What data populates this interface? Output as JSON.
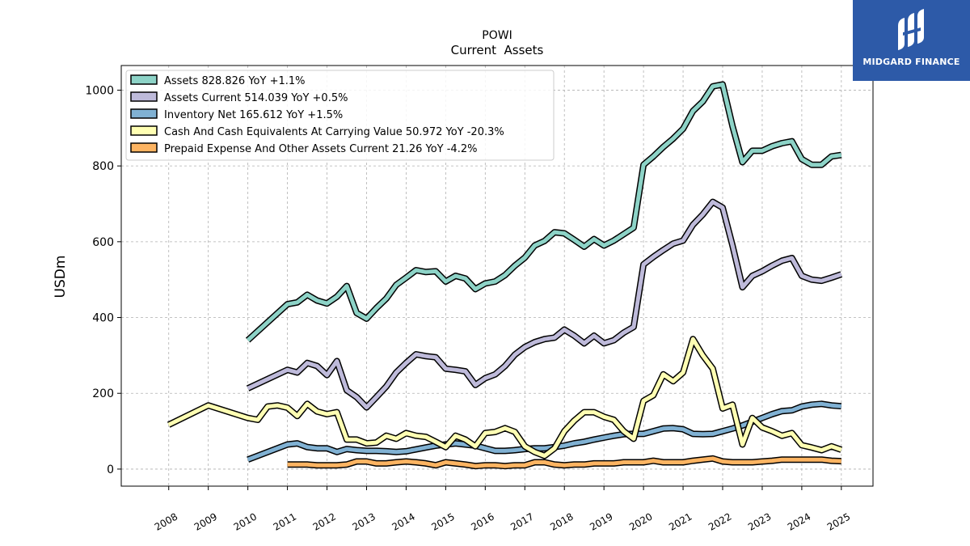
{
  "brand": {
    "name": "MIDGARD FINANCE",
    "bg_color": "#2d5aa8",
    "logo_icon": "midgard-logo-icon"
  },
  "chart_data": {
    "type": "line",
    "title": "POWI",
    "subtitle": "Current  Assets",
    "ylabel": "USDm",
    "xlabel": "",
    "ylim": [
      -45,
      1065
    ],
    "xlim": [
      2006.8,
      2025.8
    ],
    "yticks": [
      0,
      200,
      400,
      600,
      800,
      1000
    ],
    "xticks": [
      2008,
      2009,
      2010,
      2011,
      2012,
      2013,
      2014,
      2015,
      2016,
      2017,
      2018,
      2019,
      2020,
      2021,
      2022,
      2023,
      2024,
      2025
    ],
    "xtick_labels": [
      "2008",
      "2009",
      "2010",
      "2011",
      "2012",
      "2013",
      "2014",
      "2015",
      "2016",
      "2017",
      "2018",
      "2019",
      "2020",
      "2021",
      "2022",
      "2023",
      "2024",
      "2025"
    ],
    "grid": true,
    "legend_position": "top-left",
    "series": [
      {
        "name": "Assets  828.826 YoY +1.1%",
        "color": "#8dd3c7",
        "points": [
          [
            2010.0,
            340
          ],
          [
            2011.0,
            435
          ],
          [
            2011.25,
            440
          ],
          [
            2011.5,
            460
          ],
          [
            2011.75,
            445
          ],
          [
            2012.0,
            437
          ],
          [
            2012.25,
            455
          ],
          [
            2012.5,
            483
          ],
          [
            2012.75,
            412
          ],
          [
            2013.0,
            397
          ],
          [
            2013.25,
            425
          ],
          [
            2013.5,
            450
          ],
          [
            2013.75,
            486
          ],
          [
            2014.0,
            505
          ],
          [
            2014.25,
            525
          ],
          [
            2014.5,
            520
          ],
          [
            2014.75,
            522
          ],
          [
            2015.0,
            495
          ],
          [
            2015.25,
            510
          ],
          [
            2015.5,
            503
          ],
          [
            2015.75,
            475
          ],
          [
            2016.0,
            490
          ],
          [
            2016.25,
            495
          ],
          [
            2016.5,
            512
          ],
          [
            2016.75,
            537
          ],
          [
            2017.0,
            558
          ],
          [
            2017.25,
            590
          ],
          [
            2017.5,
            602
          ],
          [
            2017.75,
            625
          ],
          [
            2018.0,
            622
          ],
          [
            2018.25,
            605
          ],
          [
            2018.5,
            587
          ],
          [
            2018.75,
            607
          ],
          [
            2019.0,
            590
          ],
          [
            2019.25,
            603
          ],
          [
            2019.5,
            620
          ],
          [
            2019.75,
            637
          ],
          [
            2020.0,
            803
          ],
          [
            2020.25,
            825
          ],
          [
            2020.5,
            850
          ],
          [
            2020.75,
            872
          ],
          [
            2021.0,
            898
          ],
          [
            2021.25,
            945
          ],
          [
            2021.5,
            970
          ],
          [
            2021.75,
            1010
          ],
          [
            2022.0,
            1015
          ],
          [
            2022.25,
            905
          ],
          [
            2022.5,
            810
          ],
          [
            2022.75,
            840
          ],
          [
            2023.0,
            840
          ],
          [
            2023.25,
            852
          ],
          [
            2023.5,
            860
          ],
          [
            2023.75,
            865
          ],
          [
            2024.0,
            818
          ],
          [
            2024.25,
            803
          ],
          [
            2024.5,
            803
          ],
          [
            2024.75,
            825
          ],
          [
            2025.0,
            829
          ]
        ]
      },
      {
        "name": "Assets Current  514.039 YoY +0.5%",
        "color": "#bebada",
        "points": [
          [
            2010.0,
            213
          ],
          [
            2011.0,
            262
          ],
          [
            2011.25,
            255
          ],
          [
            2011.5,
            280
          ],
          [
            2011.75,
            272
          ],
          [
            2012.0,
            248
          ],
          [
            2012.25,
            285
          ],
          [
            2012.5,
            208
          ],
          [
            2012.75,
            190
          ],
          [
            2013.0,
            163
          ],
          [
            2013.25,
            190
          ],
          [
            2013.5,
            218
          ],
          [
            2013.75,
            255
          ],
          [
            2014.0,
            280
          ],
          [
            2014.25,
            303
          ],
          [
            2014.5,
            298
          ],
          [
            2014.75,
            295
          ],
          [
            2015.0,
            265
          ],
          [
            2015.25,
            262
          ],
          [
            2015.5,
            258
          ],
          [
            2015.75,
            222
          ],
          [
            2016.0,
            240
          ],
          [
            2016.25,
            250
          ],
          [
            2016.5,
            272
          ],
          [
            2016.75,
            302
          ],
          [
            2017.0,
            322
          ],
          [
            2017.25,
            335
          ],
          [
            2017.5,
            343
          ],
          [
            2017.75,
            347
          ],
          [
            2018.0,
            368
          ],
          [
            2018.25,
            352
          ],
          [
            2018.5,
            332
          ],
          [
            2018.75,
            352
          ],
          [
            2019.0,
            332
          ],
          [
            2019.25,
            340
          ],
          [
            2019.5,
            360
          ],
          [
            2019.75,
            375
          ],
          [
            2020.0,
            540
          ],
          [
            2020.25,
            560
          ],
          [
            2020.5,
            578
          ],
          [
            2020.75,
            595
          ],
          [
            2021.0,
            603
          ],
          [
            2021.25,
            645
          ],
          [
            2021.5,
            672
          ],
          [
            2021.75,
            705
          ],
          [
            2022.0,
            690
          ],
          [
            2022.25,
            590
          ],
          [
            2022.5,
            480
          ],
          [
            2022.75,
            510
          ],
          [
            2023.0,
            522
          ],
          [
            2023.25,
            537
          ],
          [
            2023.5,
            550
          ],
          [
            2023.75,
            557
          ],
          [
            2024.0,
            510
          ],
          [
            2024.25,
            500
          ],
          [
            2024.5,
            497
          ],
          [
            2024.75,
            505
          ],
          [
            2025.0,
            514
          ]
        ]
      },
      {
        "name": "Inventory Net  165.612 YoY +1.5%",
        "color": "#80b1d3",
        "points": [
          [
            2010.0,
            25
          ],
          [
            2011.0,
            65
          ],
          [
            2011.25,
            68
          ],
          [
            2011.5,
            58
          ],
          [
            2011.75,
            55
          ],
          [
            2012.0,
            55
          ],
          [
            2012.25,
            45
          ],
          [
            2012.5,
            53
          ],
          [
            2012.75,
            50
          ],
          [
            2013.0,
            48
          ],
          [
            2013.25,
            48
          ],
          [
            2013.5,
            47
          ],
          [
            2013.75,
            45
          ],
          [
            2014.0,
            47
          ],
          [
            2014.25,
            52
          ],
          [
            2014.5,
            57
          ],
          [
            2014.75,
            62
          ],
          [
            2015.0,
            65
          ],
          [
            2015.25,
            68
          ],
          [
            2015.5,
            65
          ],
          [
            2015.75,
            62
          ],
          [
            2016.0,
            55
          ],
          [
            2016.25,
            48
          ],
          [
            2016.5,
            48
          ],
          [
            2016.75,
            50
          ],
          [
            2017.0,
            53
          ],
          [
            2017.25,
            55
          ],
          [
            2017.5,
            55
          ],
          [
            2017.75,
            58
          ],
          [
            2018.0,
            62
          ],
          [
            2018.25,
            68
          ],
          [
            2018.5,
            72
          ],
          [
            2018.75,
            78
          ],
          [
            2019.0,
            83
          ],
          [
            2019.25,
            88
          ],
          [
            2019.5,
            92
          ],
          [
            2019.75,
            93
          ],
          [
            2020.0,
            93
          ],
          [
            2020.25,
            100
          ],
          [
            2020.5,
            107
          ],
          [
            2020.75,
            108
          ],
          [
            2021.0,
            105
          ],
          [
            2021.25,
            93
          ],
          [
            2021.5,
            92
          ],
          [
            2021.75,
            93
          ],
          [
            2022.0,
            100
          ],
          [
            2022.25,
            107
          ],
          [
            2022.5,
            115
          ],
          [
            2022.75,
            125
          ],
          [
            2023.0,
            135
          ],
          [
            2023.25,
            145
          ],
          [
            2023.5,
            153
          ],
          [
            2023.75,
            155
          ],
          [
            2024.0,
            165
          ],
          [
            2024.25,
            170
          ],
          [
            2024.5,
            172
          ],
          [
            2024.75,
            168
          ],
          [
            2025.0,
            166
          ]
        ]
      },
      {
        "name": "Cash And Cash Equivalents At Carrying Value  50.972 YoY -20.3%",
        "color": "#ffffb3",
        "points": [
          [
            2008.0,
            117
          ],
          [
            2009.0,
            168
          ],
          [
            2010.0,
            135
          ],
          [
            2010.25,
            130
          ],
          [
            2010.5,
            165
          ],
          [
            2010.75,
            168
          ],
          [
            2011.0,
            162
          ],
          [
            2011.25,
            140
          ],
          [
            2011.5,
            172
          ],
          [
            2011.75,
            152
          ],
          [
            2012.0,
            145
          ],
          [
            2012.25,
            150
          ],
          [
            2012.5,
            78
          ],
          [
            2012.75,
            78
          ],
          [
            2013.0,
            68
          ],
          [
            2013.25,
            70
          ],
          [
            2013.5,
            88
          ],
          [
            2013.75,
            80
          ],
          [
            2014.0,
            95
          ],
          [
            2014.25,
            88
          ],
          [
            2014.5,
            85
          ],
          [
            2014.75,
            72
          ],
          [
            2015.0,
            58
          ],
          [
            2015.25,
            88
          ],
          [
            2015.5,
            78
          ],
          [
            2015.75,
            60
          ],
          [
            2016.0,
            95
          ],
          [
            2016.25,
            98
          ],
          [
            2016.5,
            108
          ],
          [
            2016.75,
            98
          ],
          [
            2017.0,
            60
          ],
          [
            2017.25,
            45
          ],
          [
            2017.5,
            35
          ],
          [
            2017.75,
            55
          ],
          [
            2018.0,
            100
          ],
          [
            2018.25,
            128
          ],
          [
            2018.5,
            150
          ],
          [
            2018.75,
            150
          ],
          [
            2019.0,
            138
          ],
          [
            2019.25,
            130
          ],
          [
            2019.5,
            100
          ],
          [
            2019.75,
            80
          ],
          [
            2020.0,
            180
          ],
          [
            2020.25,
            195
          ],
          [
            2020.5,
            250
          ],
          [
            2020.75,
            232
          ],
          [
            2021.0,
            255
          ],
          [
            2021.25,
            343
          ],
          [
            2021.5,
            300
          ],
          [
            2021.75,
            265
          ],
          [
            2022.0,
            160
          ],
          [
            2022.25,
            170
          ],
          [
            2022.5,
            65
          ],
          [
            2022.75,
            135
          ],
          [
            2023.0,
            110
          ],
          [
            2023.25,
            100
          ],
          [
            2023.5,
            88
          ],
          [
            2023.75,
            95
          ],
          [
            2024.0,
            63
          ],
          [
            2024.25,
            57
          ],
          [
            2024.5,
            50
          ],
          [
            2024.75,
            60
          ],
          [
            2025.0,
            51
          ]
        ]
      },
      {
        "name": "Prepaid Expense And Other Assets Current  21.26 YoY -4.2%",
        "color": "#fdb462",
        "points": [
          [
            2011.0,
            12
          ],
          [
            2011.5,
            12
          ],
          [
            2011.75,
            10
          ],
          [
            2012.0,
            10
          ],
          [
            2012.25,
            10
          ],
          [
            2012.5,
            12
          ],
          [
            2012.75,
            20
          ],
          [
            2013.0,
            20
          ],
          [
            2013.25,
            15
          ],
          [
            2013.5,
            15
          ],
          [
            2013.75,
            18
          ],
          [
            2014.0,
            20
          ],
          [
            2014.25,
            18
          ],
          [
            2014.5,
            15
          ],
          [
            2014.75,
            10
          ],
          [
            2015.0,
            18
          ],
          [
            2015.25,
            15
          ],
          [
            2015.5,
            12
          ],
          [
            2015.75,
            8
          ],
          [
            2016.0,
            10
          ],
          [
            2016.25,
            10
          ],
          [
            2016.5,
            8
          ],
          [
            2016.75,
            10
          ],
          [
            2017.0,
            10
          ],
          [
            2017.25,
            18
          ],
          [
            2017.5,
            18
          ],
          [
            2017.75,
            12
          ],
          [
            2018.0,
            10
          ],
          [
            2018.25,
            12
          ],
          [
            2018.5,
            12
          ],
          [
            2018.75,
            15
          ],
          [
            2019.0,
            15
          ],
          [
            2019.25,
            15
          ],
          [
            2019.5,
            18
          ],
          [
            2019.75,
            18
          ],
          [
            2020.0,
            18
          ],
          [
            2020.25,
            22
          ],
          [
            2020.5,
            18
          ],
          [
            2020.75,
            18
          ],
          [
            2021.0,
            18
          ],
          [
            2021.25,
            22
          ],
          [
            2021.5,
            25
          ],
          [
            2021.75,
            28
          ],
          [
            2022.0,
            20
          ],
          [
            2022.25,
            18
          ],
          [
            2022.5,
            18
          ],
          [
            2022.75,
            18
          ],
          [
            2023.0,
            20
          ],
          [
            2023.25,
            22
          ],
          [
            2023.5,
            25
          ],
          [
            2023.75,
            25
          ],
          [
            2024.0,
            25
          ],
          [
            2024.25,
            25
          ],
          [
            2024.5,
            25
          ],
          [
            2024.75,
            22
          ],
          [
            2025.0,
            21
          ]
        ]
      }
    ]
  }
}
